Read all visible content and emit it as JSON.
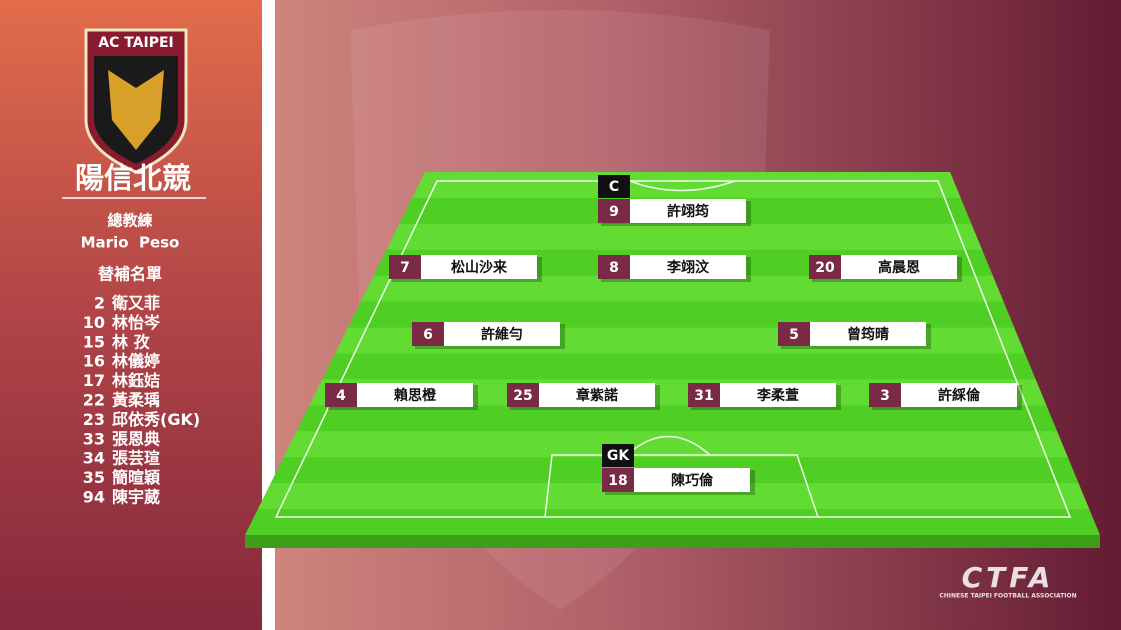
{
  "team": {
    "logo_text": "AC TAIPEI",
    "name": "陽信北競"
  },
  "coach": {
    "label": "總教練",
    "name": "Mario  Peso"
  },
  "subs": {
    "label": "替補名單",
    "players": [
      {
        "number": 2,
        "name": "衛又菲"
      },
      {
        "number": 10,
        "name": "林怡岑"
      },
      {
        "number": 15,
        "name": "林 孜"
      },
      {
        "number": 16,
        "name": "林儀婷"
      },
      {
        "number": 17,
        "name": "林鈺姞"
      },
      {
        "number": 22,
        "name": "黃柔瑀"
      },
      {
        "number": 23,
        "name": "邱依秀(GK)"
      },
      {
        "number": 33,
        "name": "張恩典"
      },
      {
        "number": 34,
        "name": "張芸瑄"
      },
      {
        "number": 35,
        "name": "簡暄穎"
      },
      {
        "number": 94,
        "name": "陳宇葳"
      }
    ]
  },
  "players": [
    {
      "number": 9,
      "name": "許翊筠",
      "badge": "C"
    },
    {
      "number": 7,
      "name": "松山沙来"
    },
    {
      "number": 8,
      "name": "李翊汶"
    },
    {
      "number": 20,
      "name": "高晨恩"
    },
    {
      "number": 6,
      "name": "許維勻"
    },
    {
      "number": 5,
      "name": "曾筠晴"
    },
    {
      "number": 4,
      "name": "賴思橙"
    },
    {
      "number": 25,
      "name": "章紫諾"
    },
    {
      "number": 31,
      "name": "李柔萱"
    },
    {
      "number": 3,
      "name": "許綵倫"
    },
    {
      "number": 18,
      "name": "陳巧倫",
      "badge": "GK"
    }
  ],
  "footer": {
    "logo": "CTFA",
    "caption": "CHINESE TAIPEI FOOTBALL ASSOCIATION"
  }
}
